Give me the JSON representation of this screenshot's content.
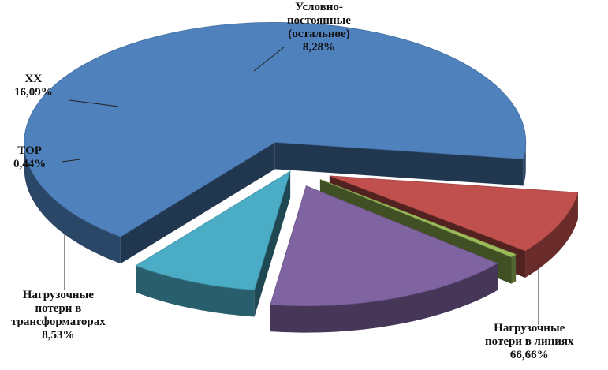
{
  "chart_data": {
    "type": "pie",
    "style": "3d-exploded",
    "title": "",
    "slices": [
      {
        "name_lines": [
          "Нагрузочные",
          "потери в линиях"
        ],
        "value_label": "66,66%",
        "value": 66.66,
        "color": "#4f81bd"
      },
      {
        "name_lines": [
          "Условно-",
          "постоянные",
          "(остальное)"
        ],
        "value_label": "8,28%",
        "value": 8.28,
        "color": "#4bacc6"
      },
      {
        "name_lines": [
          "ХХ"
        ],
        "value_label": "16,09%",
        "value": 16.09,
        "color": "#8064a2"
      },
      {
        "name_lines": [
          "ТОР"
        ],
        "value_label": "0,44%",
        "value": 0.44,
        "color": "#9bbb59"
      },
      {
        "name_lines": [
          "Нагрузочные",
          "потери в",
          "трансформаторах"
        ],
        "value_label": "8,53%",
        "value": 8.53,
        "color": "#c0504d"
      }
    ]
  }
}
